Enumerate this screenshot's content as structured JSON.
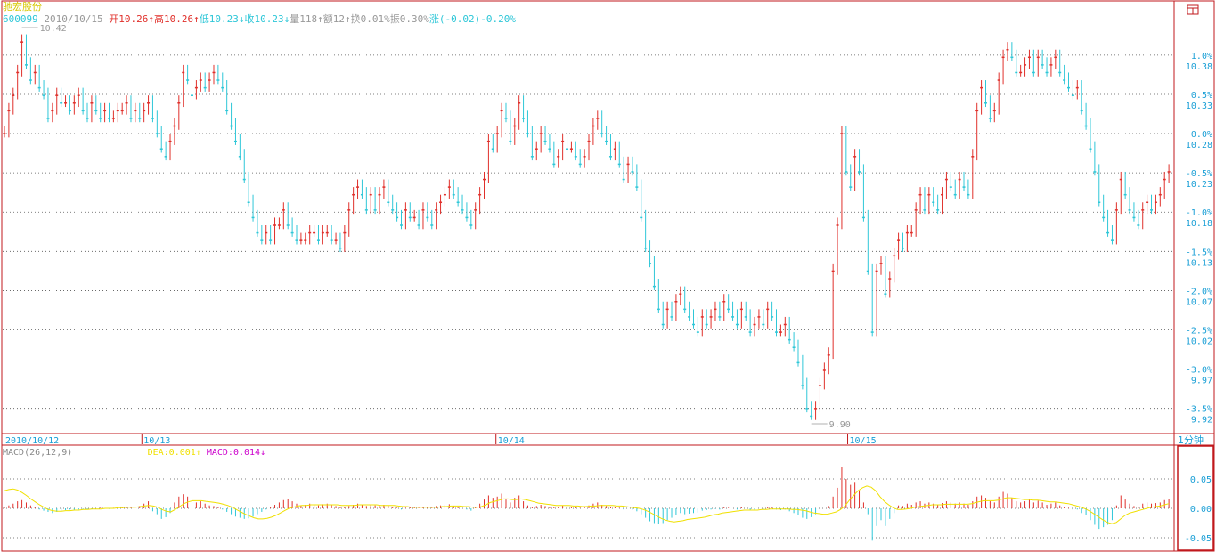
{
  "stock": {
    "name": "驰宏股份",
    "code": "600099",
    "date": "2010/10/15",
    "fields": [
      {
        "label": "开",
        "value": "10.26",
        "arrow": "↑",
        "color": "#e0302b"
      },
      {
        "label": "高",
        "value": "10.26",
        "arrow": "↑",
        "color": "#e0302b"
      },
      {
        "label": "低",
        "value": "10.23",
        "arrow": "↓",
        "color": "#2fc7d8"
      },
      {
        "label": "收",
        "value": "10.23",
        "arrow": "↓",
        "color": "#2fc7d8"
      },
      {
        "label": "量",
        "value": "118",
        "arrow": "↑",
        "color": "#999999"
      },
      {
        "label": "额",
        "value": "12",
        "arrow": "↑",
        "color": "#999999"
      },
      {
        "label": "换",
        "value": "0.01%",
        "arrow": "",
        "color": "#999999"
      },
      {
        "label": "振",
        "value": "0.30%",
        "arrow": "",
        "color": "#999999"
      },
      {
        "label": "涨",
        "value": "(-0.02)-0.20%",
        "arrow": "",
        "color": "#2fc7d8"
      }
    ]
  },
  "macd": {
    "title": "MACD(26,12,9)",
    "dea_label": "DEA:",
    "dea_value": "0.001",
    "dea_arrow": "↑",
    "macd_label": "MACD:",
    "macd_value": "0.014",
    "macd_arrow": "↓"
  },
  "period": "1分钟",
  "icons": {
    "corner": "window-toggle-icon"
  },
  "colors": {
    "up": "#e0302b",
    "down": "#2fc7d8",
    "frame": "#c0181c",
    "dea_line": "#f0e000",
    "macd_text": "#cc00cc",
    "axis_text": "#1a9fd6",
    "grid": "#555555"
  },
  "chart_data": [
    {
      "type": "candlestick",
      "title": "",
      "x_labels": [
        "2010/10/12",
        "10/13",
        "10/14",
        "10/15"
      ],
      "y_right_ticks": [
        "10.38",
        "10.33",
        "10.28",
        "10.23",
        "10.18",
        "10.13",
        "10.07",
        "10.02",
        "9.97",
        "9.92"
      ],
      "pct_ticks": [
        "1.0%",
        "0.5%",
        "0.0%",
        "-0.5%",
        "-1.0%",
        "-1.5%",
        "-2.0%",
        "-2.5%",
        "-3.0%",
        "-3.5%"
      ],
      "ylim": [
        9.9,
        10.42
      ],
      "grid": true,
      "annotations": [
        {
          "text": "10.42",
          "kind": "high"
        },
        {
          "text": "9.90",
          "kind": "low"
        }
      ],
      "series": [
        {
          "close": [
            10.28,
            10.31,
            10.33,
            10.36,
            10.4,
            10.37,
            10.35,
            10.36,
            10.34,
            10.33,
            10.3,
            10.31,
            10.33,
            10.32,
            10.32,
            10.31,
            10.32,
            10.33,
            10.31,
            10.3,
            10.32,
            10.31,
            10.3,
            10.31,
            10.3,
            10.3,
            10.31,
            10.31,
            10.32,
            10.3,
            10.31,
            10.3,
            10.31,
            10.32,
            10.3,
            10.28,
            10.26,
            10.25,
            10.27,
            10.29,
            10.32,
            10.36,
            10.35,
            10.33,
            10.34,
            10.35,
            10.34,
            10.35,
            10.36,
            10.35,
            10.34,
            10.31,
            10.29,
            10.27,
            10.25,
            10.22,
            10.19,
            10.17,
            10.15,
            10.14,
            10.15,
            10.14,
            10.16,
            10.16,
            10.18,
            10.16,
            10.15,
            10.14,
            10.14,
            10.14,
            10.15,
            10.15,
            10.14,
            10.15,
            10.15,
            10.14,
            10.14,
            10.13,
            10.15,
            10.18,
            10.2,
            10.21,
            10.2,
            10.18,
            10.2,
            10.18,
            10.2,
            10.21,
            10.19,
            10.18,
            10.17,
            10.16,
            10.18,
            10.17,
            10.17,
            10.16,
            10.18,
            10.17,
            10.16,
            10.18,
            10.19,
            10.2,
            10.21,
            10.2,
            10.19,
            10.18,
            10.17,
            10.16,
            10.18,
            10.2,
            10.22,
            10.27,
            10.26,
            10.28,
            10.31,
            10.3,
            10.27,
            10.29,
            10.32,
            10.3,
            10.28,
            10.25,
            10.26,
            10.28,
            10.27,
            10.26,
            10.24,
            10.25,
            10.27,
            10.26,
            10.26,
            10.25,
            10.24,
            10.25,
            10.27,
            10.29,
            10.3,
            10.28,
            10.27,
            10.25,
            10.26,
            10.24,
            10.22,
            10.24,
            10.23,
            10.21,
            10.17,
            10.13,
            10.11,
            10.08,
            10.05,
            10.03,
            10.05,
            10.04,
            10.06,
            10.07,
            10.05,
            10.04,
            10.03,
            10.02,
            10.04,
            10.03,
            10.04,
            10.05,
            10.04,
            10.06,
            10.05,
            10.04,
            10.03,
            10.05,
            10.04,
            10.02,
            10.03,
            10.04,
            10.03,
            10.05,
            10.04,
            10.02,
            10.02,
            10.03,
            10.01,
            10.0,
            9.98,
            9.95,
            9.92,
            9.91,
            9.92,
            9.95,
            9.97,
            9.99,
            10.1,
            10.16,
            10.28,
            10.23,
            10.21,
            10.25,
            10.23,
            10.17,
            10.1,
            10.02,
            10.1,
            10.11,
            10.07,
            10.09,
            10.12,
            10.14,
            10.13,
            10.15,
            10.15,
            10.18,
            10.2,
            10.18,
            10.2,
            10.19,
            10.18,
            10.2,
            10.22,
            10.21,
            10.2,
            10.22,
            10.21,
            10.2,
            10.25,
            10.31,
            10.34,
            10.32,
            10.3,
            10.31,
            10.35,
            10.38,
            10.39,
            10.38,
            10.36,
            10.36,
            10.37,
            10.38,
            10.36,
            10.38,
            10.37,
            10.36,
            10.37,
            10.38,
            10.36,
            10.35,
            10.34,
            10.33,
            10.34,
            10.31,
            10.29,
            10.26,
            10.23,
            10.19,
            10.17,
            10.15,
            10.14,
            10.18,
            10.22,
            10.2,
            10.18,
            10.17,
            10.16,
            10.18,
            10.19,
            10.18,
            10.19,
            10.2,
            10.22,
            10.23
          ]
        }
      ]
    },
    {
      "type": "bar",
      "title": "MACD(26,12,9)",
      "y_ticks": [
        "0.05",
        "0.00",
        "-0.05"
      ],
      "ylim": [
        -0.06,
        0.07
      ],
      "series": [
        {
          "name": "MACD",
          "values": [
            0.003,
            0.005,
            0.008,
            0.012,
            0.014,
            0.01,
            0.005,
            0.002,
            -0.002,
            -0.004,
            -0.006,
            -0.008,
            -0.006,
            -0.004,
            -0.003,
            -0.002,
            -0.003,
            -0.002,
            -0.001,
            -0.002,
            -0.001,
            0.0,
            0.001,
            0.0,
            -0.001,
            0.001,
            0.002,
            0.003,
            0.002,
            0.001,
            0.0,
            0.004,
            0.008,
            0.012,
            -0.005,
            -0.01,
            -0.018,
            -0.015,
            -0.008,
            0.01,
            0.02,
            0.024,
            0.02,
            0.015,
            0.01,
            0.012,
            0.008,
            0.005,
            0.004,
            0.003,
            -0.002,
            -0.006,
            -0.01,
            -0.014,
            -0.016,
            -0.018,
            -0.017,
            -0.014,
            -0.01,
            -0.006,
            -0.002,
            0.002,
            0.006,
            0.01,
            0.014,
            0.016,
            0.012,
            0.008,
            0.005,
            0.006,
            0.008,
            0.006,
            0.005,
            0.007,
            0.008,
            0.006,
            0.004,
            0.003,
            0.002,
            0.004,
            0.006,
            0.008,
            0.006,
            0.004,
            0.006,
            0.005,
            0.004,
            0.006,
            0.005,
            0.003,
            0.001,
            -0.002,
            0.001,
            0.003,
            0.002,
            0.001,
            0.003,
            0.002,
            0.001,
            0.004,
            0.005,
            0.006,
            0.007,
            0.004,
            0.002,
            0.0,
            -0.002,
            -0.004,
            0.002,
            0.008,
            0.015,
            0.022,
            0.018,
            0.02,
            0.025,
            0.015,
            0.01,
            0.018,
            0.022,
            0.012,
            0.005,
            0.002,
            0.004,
            0.006,
            0.004,
            0.003,
            0.002,
            0.003,
            0.005,
            0.004,
            0.003,
            0.002,
            0.001,
            0.003,
            0.005,
            0.008,
            0.01,
            0.006,
            0.004,
            0.002,
            0.003,
            0.001,
            -0.002,
            0.0,
            -0.002,
            -0.005,
            -0.01,
            -0.016,
            -0.022,
            -0.025,
            -0.026,
            -0.025,
            -0.02,
            -0.016,
            -0.012,
            -0.008,
            -0.01,
            -0.009,
            -0.008,
            -0.007,
            -0.004,
            -0.003,
            -0.002,
            -0.001,
            -0.002,
            0.002,
            0.001,
            0.0,
            -0.002,
            0.002,
            0.0,
            -0.003,
            -0.002,
            0.0,
            -0.001,
            0.002,
            0.001,
            -0.002,
            -0.003,
            -0.002,
            -0.005,
            -0.008,
            -0.012,
            -0.016,
            -0.018,
            -0.015,
            -0.01,
            -0.004,
            0.0,
            0.004,
            0.02,
            0.035,
            0.07,
            0.05,
            0.04,
            0.045,
            0.03,
            0.01,
            -0.01,
            -0.055,
            -0.03,
            -0.02,
            -0.03,
            -0.018,
            -0.008,
            0.005,
            0.004,
            0.008,
            0.006,
            0.01,
            0.012,
            0.008,
            0.01,
            0.008,
            0.006,
            0.009,
            0.012,
            0.01,
            0.008,
            0.01,
            0.008,
            0.006,
            0.012,
            0.02,
            0.022,
            0.018,
            0.012,
            0.01,
            0.02,
            0.028,
            0.025,
            0.018,
            0.012,
            0.01,
            0.012,
            0.016,
            0.01,
            0.013,
            0.01,
            0.006,
            0.008,
            0.01,
            0.005,
            0.003,
            0.001,
            -0.003,
            -0.002,
            -0.008,
            -0.012,
            -0.02,
            -0.028,
            -0.035,
            -0.032,
            -0.028,
            -0.02,
            0.005,
            0.022,
            0.015,
            0.008,
            0.004,
            0.002,
            0.008,
            0.01,
            0.008,
            0.009,
            0.01,
            0.014,
            0.016
          ]
        },
        {
          "name": "DEA",
          "values": [
            0.03,
            0.032,
            0.033,
            0.031,
            0.027,
            0.022,
            0.016,
            0.011,
            0.006,
            0.002,
            -0.002,
            -0.004,
            -0.005,
            -0.005,
            -0.004,
            -0.004,
            -0.003,
            -0.003,
            -0.002,
            -0.002,
            -0.001,
            -0.001,
            -0.001,
            0.0,
            0.0,
            0.0,
            0.001,
            0.001,
            0.002,
            0.002,
            0.002,
            0.003,
            0.004,
            0.005,
            0.004,
            0.002,
            -0.002,
            -0.005,
            -0.006,
            -0.002,
            0.003,
            0.008,
            0.011,
            0.013,
            0.013,
            0.013,
            0.012,
            0.011,
            0.01,
            0.009,
            0.007,
            0.005,
            0.002,
            -0.002,
            -0.006,
            -0.01,
            -0.013,
            -0.016,
            -0.018,
            -0.018,
            -0.017,
            -0.015,
            -0.012,
            -0.008,
            -0.004,
            0.0,
            0.002,
            0.004,
            0.005,
            0.005,
            0.006,
            0.006,
            0.006,
            0.006,
            0.006,
            0.006,
            0.006,
            0.005,
            0.005,
            0.005,
            0.005,
            0.006,
            0.006,
            0.006,
            0.006,
            0.006,
            0.005,
            0.005,
            0.005,
            0.005,
            0.004,
            0.003,
            0.003,
            0.002,
            0.002,
            0.002,
            0.002,
            0.002,
            0.002,
            0.002,
            0.003,
            0.003,
            0.004,
            0.004,
            0.004,
            0.003,
            0.003,
            0.002,
            0.002,
            0.003,
            0.006,
            0.01,
            0.012,
            0.014,
            0.016,
            0.016,
            0.015,
            0.015,
            0.016,
            0.015,
            0.013,
            0.011,
            0.009,
            0.008,
            0.007,
            0.006,
            0.005,
            0.005,
            0.005,
            0.005,
            0.004,
            0.004,
            0.003,
            0.003,
            0.004,
            0.004,
            0.005,
            0.005,
            0.005,
            0.005,
            0.004,
            0.004,
            0.003,
            0.002,
            0.001,
            0.0,
            -0.002,
            -0.005,
            -0.009,
            -0.013,
            -0.017,
            -0.02,
            -0.022,
            -0.023,
            -0.022,
            -0.021,
            -0.019,
            -0.018,
            -0.017,
            -0.016,
            -0.015,
            -0.013,
            -0.011,
            -0.01,
            -0.008,
            -0.007,
            -0.006,
            -0.005,
            -0.004,
            -0.003,
            -0.003,
            -0.003,
            -0.003,
            -0.002,
            -0.002,
            -0.001,
            -0.001,
            -0.001,
            -0.001,
            -0.001,
            -0.002,
            -0.002,
            -0.003,
            -0.004,
            -0.006,
            -0.008,
            -0.009,
            -0.01,
            -0.01,
            -0.008,
            -0.006,
            -0.002,
            0.004,
            0.014,
            0.022,
            0.03,
            0.035,
            0.038,
            0.036,
            0.03,
            0.02,
            0.012,
            0.006,
            0.001,
            -0.002,
            -0.002,
            -0.001,
            0.0,
            0.002,
            0.003,
            0.004,
            0.005,
            0.006,
            0.006,
            0.006,
            0.007,
            0.007,
            0.007,
            0.007,
            0.007,
            0.007,
            0.008,
            0.01,
            0.012,
            0.013,
            0.013,
            0.013,
            0.014,
            0.016,
            0.018,
            0.018,
            0.017,
            0.016,
            0.015,
            0.015,
            0.014,
            0.014,
            0.013,
            0.012,
            0.011,
            0.011,
            0.01,
            0.009,
            0.008,
            0.006,
            0.004,
            0.002,
            -0.001,
            -0.005,
            -0.01,
            -0.015,
            -0.02,
            -0.024,
            -0.026,
            -0.024,
            -0.018,
            -0.012,
            -0.008,
            -0.006,
            -0.004,
            -0.002,
            0.0,
            0.002,
            0.003,
            0.004,
            0.006,
            0.008
          ]
        }
      ]
    }
  ]
}
